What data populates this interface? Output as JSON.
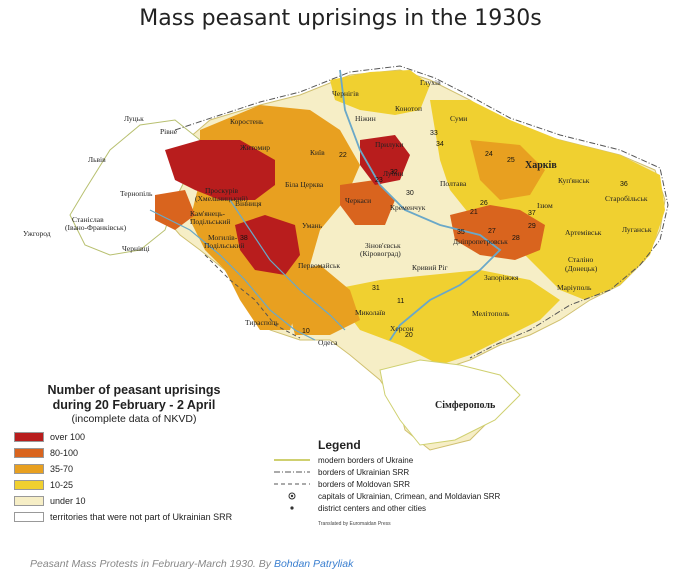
{
  "title": "Mass peasant uprisings in the 1930s",
  "count_legend": {
    "heading_line1": "Number of peasant uprisings",
    "heading_line2": "during 20 February - 2 April",
    "note": "(incomplete data of NKVD)",
    "items": [
      {
        "label": "over 100",
        "color": "#b81d1d"
      },
      {
        "label": "80-100",
        "color": "#d9641e"
      },
      {
        "label": "35-70",
        "color": "#e8a020"
      },
      {
        "label": "10-25",
        "color": "#f0d030"
      },
      {
        "label": "under 10",
        "color": "#f6eec6"
      },
      {
        "label": "territories that were not part of Ukrainian SRR",
        "color": "#ffffff"
      }
    ]
  },
  "legend": {
    "title": "Legend",
    "items": [
      {
        "label": "modern borders of Ukraine",
        "symbol": "line-yellow"
      },
      {
        "label": "borders of Ukrainian SRR",
        "symbol": "line-dashdot"
      },
      {
        "label": "borders of Moldovan SRR",
        "symbol": "line-dash"
      },
      {
        "label": "capitals of Ukrainian, Crimean, and Moldavian SRR",
        "symbol": "dot-ring"
      },
      {
        "label": "district centers and other cities",
        "symbol": "dot"
      }
    ]
  },
  "credit": "Translated by Euromaidan Press",
  "caption": {
    "text": "Peasant Mass Protests in February-March 1930. By ",
    "author": "Bohdan Patryliak"
  },
  "places": [
    "Глухів",
    "Чернігів",
    "Ніжин",
    "Конотоп",
    "Суми",
    "Прилуки",
    "Полтава",
    "Харків",
    "Луцьк",
    "Рівне",
    "Коростень",
    "Київ",
    "Житомир",
    "Біла Церква",
    "Черкаси",
    "Кременчук",
    "Лубни",
    "Проскурів",
    "(Хмельницький)",
    "Львів",
    "Тернопіль",
    "Вінниця",
    "Кам'янець-",
    "Подільський",
    "Станіслав",
    "(Івано-Франківськ)",
    "Ужгород",
    "Чернівці",
    "Могилів-",
    "Подільський",
    "Умань",
    "Зінов'євськ",
    "(Кіровоград)",
    "Кривий Ріг",
    "Дніпропетровськ",
    "Запоріжжя",
    "Артемівськ",
    "Луганськ",
    "Старобільськ",
    "Куп'янськ",
    "Ізюм",
    "Сталіно",
    "(Донецьк)",
    "Маріуполь",
    "Первомайськ",
    "Тирасполь",
    "Одеса",
    "Миколаїв",
    "Херсон",
    "Мелітополь",
    "Сімферополь"
  ],
  "numbers": [
    "33",
    "34",
    "25",
    "24",
    "22",
    "23",
    "32",
    "26",
    "27",
    "28",
    "29",
    "30",
    "36",
    "31",
    "10",
    "11",
    "20",
    "21",
    "35",
    "37",
    "38"
  ]
}
